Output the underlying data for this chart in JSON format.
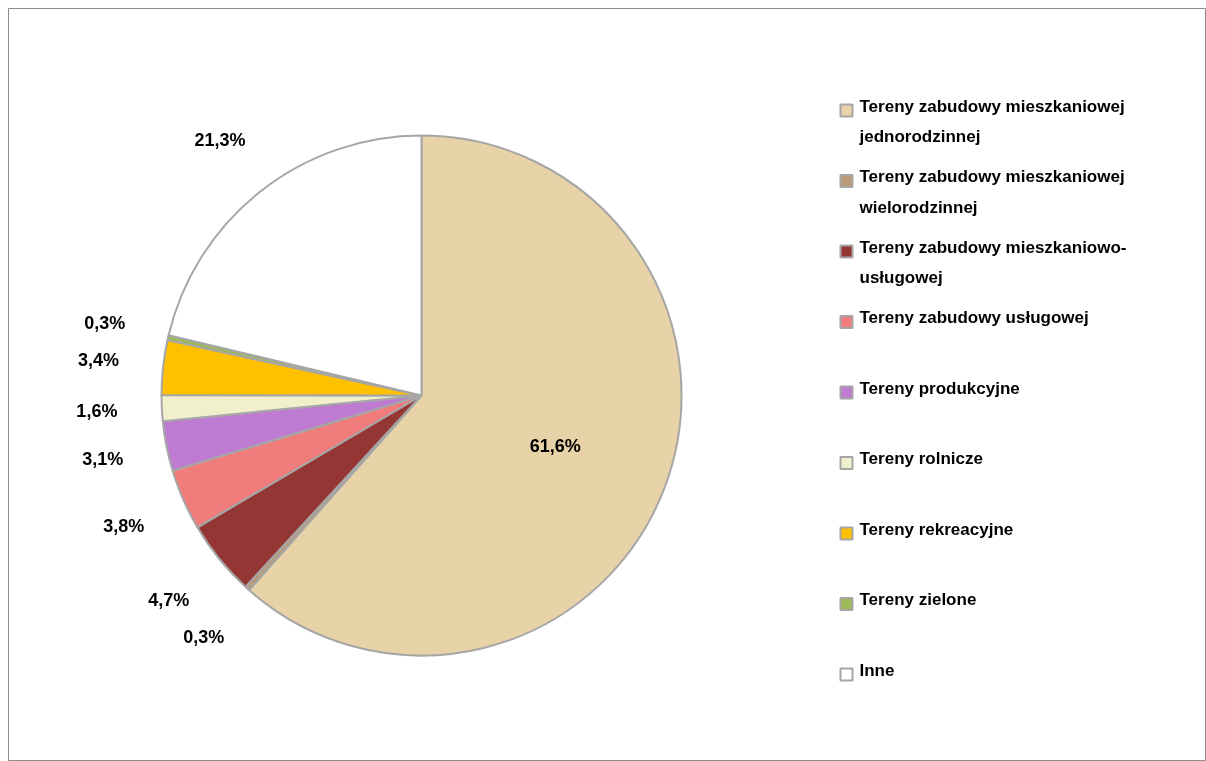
{
  "chart_data": {
    "type": "pie",
    "categories": [
      "Tereny zabudowy mieszkaniowej jednorodzinnej",
      "Tereny zabudowy mieszkaniowej wielorodzinnej",
      "Tereny zabudowy mieszkaniowo-usługowej",
      "Tereny zabudowy usługowej",
      "Tereny produkcyjne",
      "Tereny rolnicze",
      "Tereny rekreacyjne",
      "Tereny zielone",
      "Inne"
    ],
    "values": [
      61.6,
      0.3,
      4.7,
      3.8,
      3.1,
      1.6,
      3.4,
      0.3,
      21.3
    ],
    "colors": [
      "#e8d2a8",
      "#b89a7a",
      "#943634",
      "#f07c7c",
      "#bf7bd1",
      "#f0f0cc",
      "#ffc000",
      "#9bbb59",
      "#ffffff"
    ],
    "value_labels": [
      "61,6%",
      "0,3%",
      "4,7%",
      "3,8%",
      "3,1%",
      "1,6%",
      "3,4%",
      "0,3%",
      "21,3%"
    ],
    "legend": "right"
  }
}
